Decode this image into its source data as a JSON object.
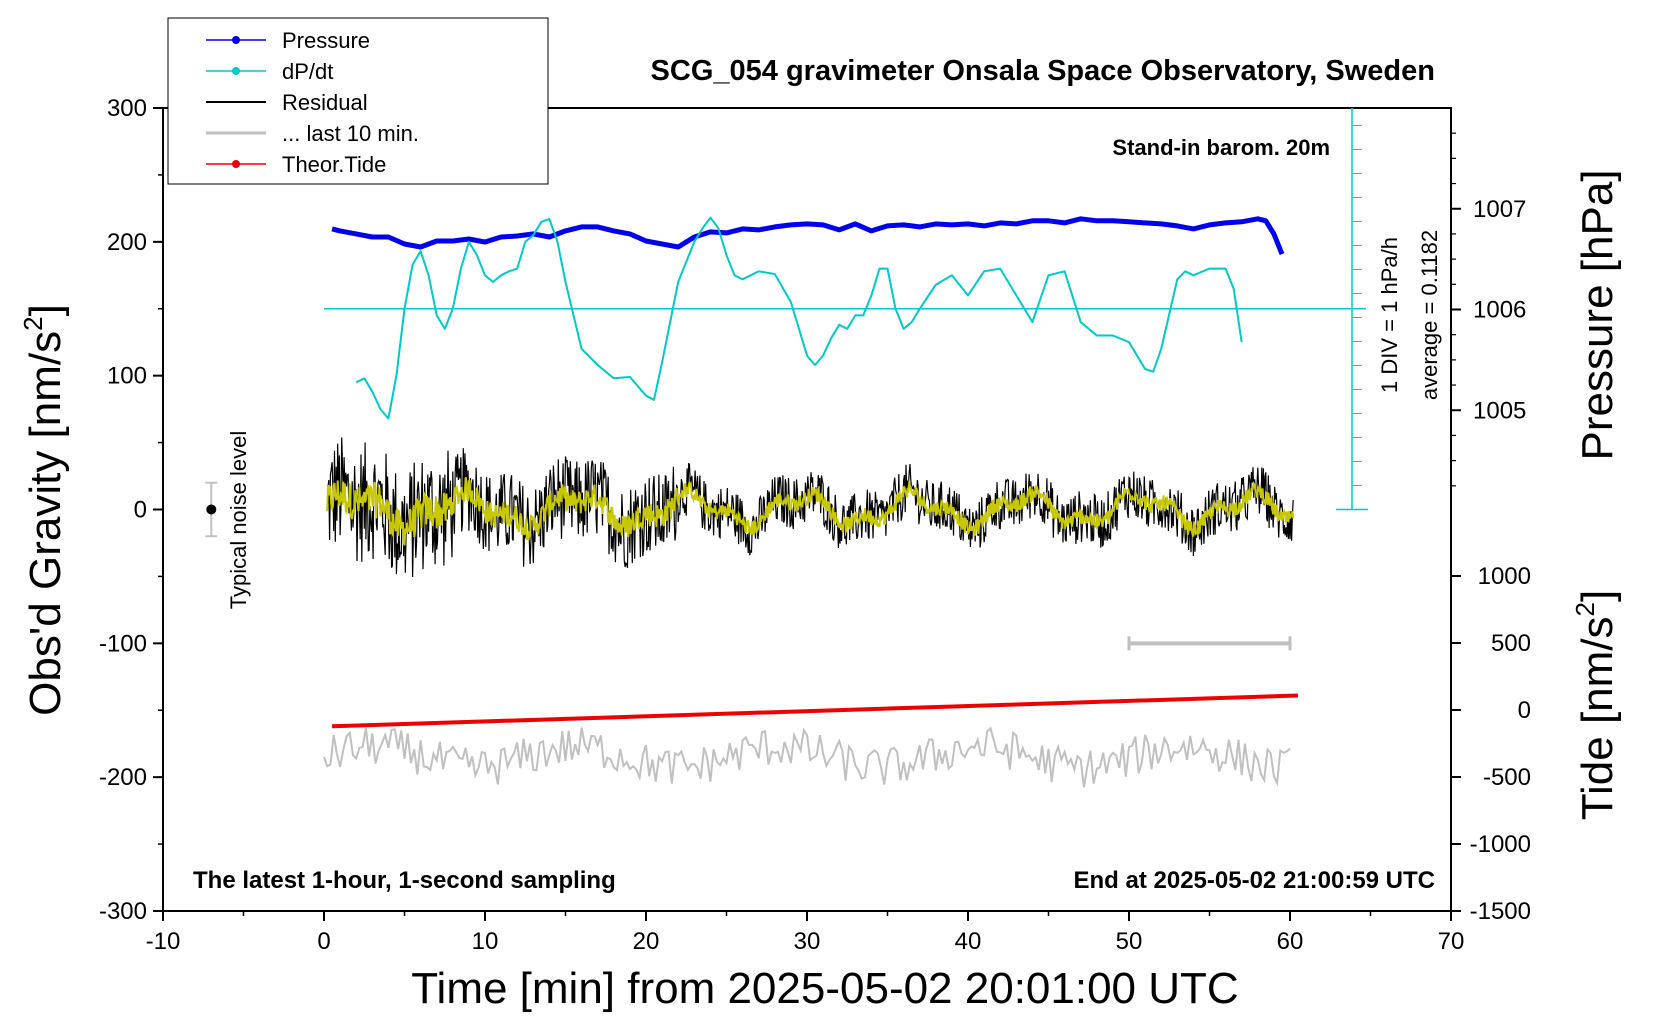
{
  "chart_data": {
    "type": "line",
    "title": "SCG_054 gravimeter Onsala Space Observatory, Sweden",
    "xlabel": "Time [min] from 2025-05-02 20:01:00 UTC",
    "ylabel_left_main": "Obs'd Gravity [nm/s",
    "ylabel_left_sup": "2",
    "ylabel_left_end": "]",
    "ylabel_right_pressure": "Pressure [hPa]",
    "ylabel_right_tide_main": "Tide [nm/s",
    "ylabel_right_tide_sup": "2",
    "ylabel_right_tide_end": "]",
    "xlim": [
      -10,
      70
    ],
    "ylim": [
      -300,
      300
    ],
    "pressure_range": [
      1004,
      1008
    ],
    "tide_range": [
      -1500,
      1500
    ],
    "xticks": [
      "-10",
      "0",
      "10",
      "20",
      "30",
      "40",
      "50",
      "60",
      "70"
    ],
    "yticks": [
      "-300",
      "-200",
      "-100",
      "0",
      "100",
      "200",
      "300"
    ],
    "pressure_ticks": [
      "1005",
      "1006",
      "1007"
    ],
    "tide_ticks": [
      "-1500",
      "-1000",
      "-500",
      "0",
      "500",
      "1000"
    ],
    "annotations": {
      "top_right": "Stand-in barom. 20m",
      "bottom_left": "The latest 1-hour, 1-second sampling",
      "bottom_right": "End at 2025-05-02 21:00:59 UTC",
      "noise": "Typical noise level",
      "div": "1 DIV = 1 hPa/h",
      "average": "average = 0.1182"
    },
    "legend": [
      {
        "name": "Pressure",
        "color": "#0000ee",
        "marker": true
      },
      {
        "name": "dP/dt",
        "color": "#00c8c8",
        "marker": true
      },
      {
        "name": "Residual",
        "color": "#000000",
        "marker": false
      },
      {
        "name": "... last 10 min.",
        "color": "#c0c0c0",
        "marker": false
      },
      {
        "name": "Theor.Tide",
        "color": "#ee0000",
        "marker": true
      }
    ],
    "legend_position": "top-left",
    "dpdt_zero_level_gravity": 150,
    "last10_bar": {
      "x": [
        50,
        60
      ],
      "y": -100
    },
    "noise_bar": {
      "x": -7,
      "y": 0,
      "half_range": 20
    },
    "series": [
      {
        "name": "Pressure",
        "color": "#0000ee",
        "x": [
          0.5,
          1,
          2,
          3,
          4,
          5,
          6,
          7,
          8,
          9,
          10,
          11,
          12,
          13,
          14,
          15,
          16,
          17,
          18,
          19,
          20,
          21,
          22,
          23,
          24,
          25,
          26,
          27,
          28,
          29,
          30,
          31,
          32,
          33,
          34,
          35,
          36,
          37,
          38,
          39,
          40,
          41,
          42,
          43,
          44,
          45,
          46,
          47,
          48,
          49,
          50,
          51,
          52,
          53,
          54,
          55,
          56,
          57,
          58,
          58.5,
          59,
          59.5
        ],
        "y": [
          1006.8,
          1006.78,
          1006.75,
          1006.72,
          1006.72,
          1006.65,
          1006.62,
          1006.68,
          1006.68,
          1006.7,
          1006.67,
          1006.72,
          1006.73,
          1006.75,
          1006.72,
          1006.78,
          1006.82,
          1006.82,
          1006.78,
          1006.75,
          1006.68,
          1006.65,
          1006.62,
          1006.72,
          1006.77,
          1006.76,
          1006.8,
          1006.79,
          1006.82,
          1006.84,
          1006.85,
          1006.84,
          1006.79,
          1006.85,
          1006.78,
          1006.83,
          1006.84,
          1006.82,
          1006.85,
          1006.84,
          1006.85,
          1006.83,
          1006.86,
          1006.85,
          1006.88,
          1006.88,
          1006.86,
          1006.9,
          1006.88,
          1006.88,
          1006.87,
          1006.86,
          1006.85,
          1006.83,
          1006.8,
          1006.84,
          1006.86,
          1006.87,
          1006.9,
          1006.88,
          1006.75,
          1006.55
        ]
      },
      {
        "name": "dP/dt",
        "color": "#00c8c8",
        "x": [
          2,
          2.5,
          3,
          3.5,
          4,
          4.5,
          5,
          5.5,
          6,
          6.5,
          7,
          7.5,
          8,
          8.5,
          9,
          9.5,
          10,
          10.5,
          11,
          11.5,
          12,
          12.5,
          13,
          13.5,
          14,
          14.5,
          15,
          16,
          17,
          18,
          19,
          20,
          20.5,
          21,
          22,
          23,
          23.5,
          24,
          24.5,
          25,
          25.5,
          26,
          27,
          28,
          29,
          30,
          30.5,
          31,
          31.5,
          32,
          32.5,
          33,
          33.5,
          34,
          34.5,
          35,
          35.5,
          36,
          36.5,
          37,
          38,
          39,
          40,
          41,
          42,
          43,
          44,
          45,
          46,
          47,
          48,
          49,
          50,
          51,
          51.5,
          52,
          53,
          53.5,
          54,
          55,
          56,
          56.5,
          57
        ],
        "y": [
          95,
          98,
          88,
          75,
          68,
          100,
          150,
          183,
          193,
          175,
          145,
          135,
          150,
          180,
          200,
          190,
          175,
          170,
          175,
          178,
          180,
          200,
          205,
          215,
          217,
          200,
          170,
          120,
          108,
          98,
          99,
          85,
          82,
          110,
          170,
          200,
          210,
          218,
          210,
          190,
          175,
          172,
          178,
          176,
          155,
          115,
          108,
          115,
          128,
          138,
          135,
          145,
          145,
          160,
          180,
          180,
          150,
          135,
          140,
          150,
          168,
          175,
          160,
          178,
          180,
          160,
          140,
          175,
          178,
          140,
          130,
          130,
          125,
          105,
          103,
          120,
          172,
          178,
          175,
          180,
          180,
          165,
          125
        ]
      },
      {
        "name": "Theor.Tide",
        "color": "#ee0000",
        "x": [
          0.5,
          60.5
        ],
        "y": [
          -162,
          -139
        ]
      }
    ]
  }
}
